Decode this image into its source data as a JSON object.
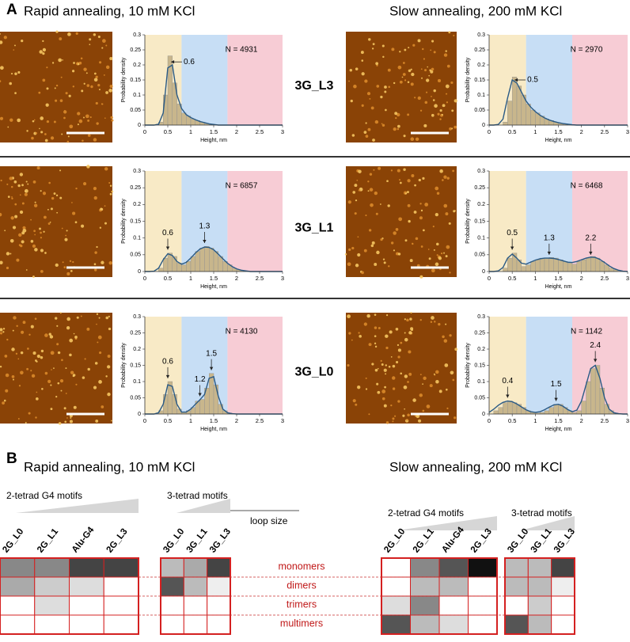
{
  "panel_a": {
    "label": "A",
    "titles": [
      "Rapid annealing, 10 mM KCl",
      "Slow annealing, 200 mM KCl"
    ],
    "rows": [
      "3G_L3",
      "3G_L1",
      "3G_L0"
    ]
  },
  "chart_data": [
    {
      "type": "histogram",
      "n_label": "N = 4931",
      "xlabel": "Height, nm",
      "ylabel": "Probability density",
      "bins": [
        0,
        0.1,
        0.2,
        0.3,
        0.4,
        0.5,
        0.6,
        0.7,
        0.8,
        0.9,
        1,
        1.1,
        1.2,
        1.3,
        1.4,
        1.5,
        1.6,
        1.7,
        1.8,
        1.9,
        2,
        2.1,
        2.2,
        2.3,
        2.4,
        2.5,
        2.6,
        2.7,
        2.8,
        2.9,
        3
      ],
      "values": [
        0,
        0,
        0,
        0.01,
        0.1,
        0.23,
        0.14,
        0.07,
        0.04,
        0.03,
        0.02,
        0.015,
        0.01,
        0.005,
        0.003,
        0,
        0,
        0,
        0,
        0,
        0,
        0,
        0,
        0,
        0,
        0,
        0,
        0,
        0,
        0
      ],
      "fit": [
        0,
        0,
        0,
        0.003,
        0.04,
        0.19,
        0.2,
        0.1,
        0.055,
        0.035,
        0.025,
        0.018,
        0.012,
        0.008,
        0.004,
        0.002,
        0,
        0,
        0,
        0,
        0,
        0,
        0,
        0,
        0,
        0,
        0,
        0,
        0,
        0,
        0
      ],
      "color": "#c8b68c",
      "fit_color": "#2a5a85",
      "regions": [
        {
          "x0": 0,
          "x1": 0.8,
          "color": "#f8eac6"
        },
        {
          "x0": 0.8,
          "x1": 1.8,
          "color": "#c7def5"
        },
        {
          "x0": 1.8,
          "x1": 3,
          "color": "#f7ccd5"
        }
      ],
      "annotations": [
        {
          "label": "0.6",
          "x": 0.57,
          "y": 0.21,
          "arrow": "left"
        }
      ],
      "xlim": [
        0,
        3
      ],
      "xticks": [
        0,
        0.5,
        1,
        1.5,
        2,
        2.5,
        3
      ],
      "ylim": [
        0,
        0.3
      ],
      "yticks": [
        0,
        0.05,
        0.1,
        0.15,
        0.2,
        0.25,
        0.3
      ]
    },
    {
      "type": "histogram",
      "n_label": "N = 2970",
      "xlabel": "Height, nm",
      "ylabel": "Probability density",
      "bins": [
        0,
        0.1,
        0.2,
        0.3,
        0.4,
        0.5,
        0.6,
        0.7,
        0.8,
        0.9,
        1,
        1.1,
        1.2,
        1.3,
        1.4,
        1.5,
        1.6,
        1.7,
        1.8,
        1.9,
        2,
        2.1,
        2.2,
        2.3,
        2.4,
        2.5,
        2.6,
        2.7,
        2.8,
        2.9,
        3
      ],
      "values": [
        0,
        0,
        0,
        0.01,
        0.08,
        0.16,
        0.13,
        0.1,
        0.07,
        0.05,
        0.04,
        0.03,
        0.02,
        0.015,
        0.01,
        0.005,
        0.003,
        0,
        0,
        0,
        0,
        0,
        0,
        0,
        0,
        0,
        0,
        0,
        0,
        0
      ],
      "fit": [
        0,
        0,
        0.002,
        0.02,
        0.09,
        0.15,
        0.14,
        0.11,
        0.08,
        0.06,
        0.045,
        0.033,
        0.024,
        0.017,
        0.012,
        0.008,
        0.005,
        0.003,
        0.001,
        0,
        0,
        0,
        0,
        0,
        0,
        0,
        0,
        0,
        0,
        0,
        0
      ],
      "color": "#c8b68c",
      "fit_color": "#2a5a85",
      "regions": [
        {
          "x0": 0,
          "x1": 0.8,
          "color": "#f8eac6"
        },
        {
          "x0": 0.8,
          "x1": 1.8,
          "color": "#c7def5"
        },
        {
          "x0": 1.8,
          "x1": 3,
          "color": "#f7ccd5"
        }
      ],
      "annotations": [
        {
          "label": "0.5",
          "x": 0.55,
          "y": 0.15,
          "arrow": "left"
        }
      ],
      "xlim": [
        0,
        3
      ],
      "xticks": [
        0,
        0.5,
        1,
        1.5,
        2,
        2.5,
        3
      ],
      "ylim": [
        0,
        0.3
      ],
      "yticks": [
        0,
        0.05,
        0.1,
        0.15,
        0.2,
        0.25,
        0.3
      ]
    },
    {
      "type": "histogram",
      "n_label": "N = 6857",
      "xlabel": "Height, nm",
      "ylabel": "Probability density",
      "bins": [
        0,
        0.1,
        0.2,
        0.3,
        0.4,
        0.5,
        0.6,
        0.7,
        0.8,
        0.9,
        1,
        1.1,
        1.2,
        1.3,
        1.4,
        1.5,
        1.6,
        1.7,
        1.8,
        1.9,
        2,
        2.1,
        2.2,
        2.3,
        2.4,
        2.5,
        2.6,
        2.7,
        2.8,
        2.9,
        3
      ],
      "values": [
        0,
        0,
        0,
        0.01,
        0.04,
        0.055,
        0.045,
        0.025,
        0.02,
        0.03,
        0.045,
        0.06,
        0.07,
        0.075,
        0.07,
        0.06,
        0.045,
        0.03,
        0.02,
        0.01,
        0.005,
        0.003,
        0,
        0,
        0,
        0,
        0,
        0,
        0,
        0
      ],
      "fit": [
        0,
        0,
        0.001,
        0.01,
        0.035,
        0.053,
        0.048,
        0.03,
        0.022,
        0.027,
        0.04,
        0.055,
        0.067,
        0.073,
        0.072,
        0.065,
        0.052,
        0.038,
        0.025,
        0.015,
        0.008,
        0.004,
        0.002,
        0,
        0,
        0,
        0,
        0,
        0,
        0,
        0
      ],
      "color": "#c8b68c",
      "fit_color": "#2a5a85",
      "regions": [
        {
          "x0": 0,
          "x1": 0.8,
          "color": "#f8eac6"
        },
        {
          "x0": 0.8,
          "x1": 1.8,
          "color": "#c7def5"
        },
        {
          "x0": 1.8,
          "x1": 3,
          "color": "#f7ccd5"
        }
      ],
      "annotations": [
        {
          "label": "0.6",
          "x": 0.5,
          "y": 0.065,
          "arrow": "down"
        },
        {
          "label": "1.3",
          "x": 1.3,
          "y": 0.085,
          "arrow": "down"
        }
      ],
      "xlim": [
        0,
        3
      ],
      "xticks": [
        0,
        0.5,
        1,
        1.5,
        2,
        2.5,
        3
      ],
      "ylim": [
        0,
        0.3
      ],
      "yticks": [
        0,
        0.05,
        0.1,
        0.15,
        0.2,
        0.25,
        0.3
      ]
    },
    {
      "type": "histogram",
      "n_label": "N = 6468",
      "xlabel": "Height, nm",
      "ylabel": "Probability density",
      "bins": [
        0,
        0.1,
        0.2,
        0.3,
        0.4,
        0.5,
        0.6,
        0.7,
        0.8,
        0.9,
        1,
        1.1,
        1.2,
        1.3,
        1.4,
        1.5,
        1.6,
        1.7,
        1.8,
        1.9,
        2,
        2.1,
        2.2,
        2.3,
        2.4,
        2.5,
        2.6,
        2.7,
        2.8,
        2.9,
        3
      ],
      "values": [
        0,
        0,
        0,
        0.01,
        0.04,
        0.055,
        0.035,
        0.015,
        0.02,
        0.03,
        0.035,
        0.04,
        0.04,
        0.042,
        0.04,
        0.035,
        0.03,
        0.025,
        0.022,
        0.03,
        0.035,
        0.04,
        0.045,
        0.04,
        0.03,
        0.02,
        0.01,
        0.005,
        0,
        0
      ],
      "fit": [
        0,
        0,
        0.002,
        0.012,
        0.04,
        0.052,
        0.04,
        0.025,
        0.022,
        0.028,
        0.034,
        0.038,
        0.04,
        0.04,
        0.039,
        0.036,
        0.032,
        0.028,
        0.027,
        0.03,
        0.035,
        0.04,
        0.043,
        0.042,
        0.036,
        0.027,
        0.017,
        0.009,
        0.004,
        0.001,
        0
      ],
      "color": "#c8b68c",
      "fit_color": "#2a5a85",
      "regions": [
        {
          "x0": 0,
          "x1": 0.8,
          "color": "#f8eac6"
        },
        {
          "x0": 0.8,
          "x1": 1.8,
          "color": "#c7def5"
        },
        {
          "x0": 1.8,
          "x1": 3,
          "color": "#f7ccd5"
        }
      ],
      "annotations": [
        {
          "label": "0.5",
          "x": 0.5,
          "y": 0.065,
          "arrow": "down"
        },
        {
          "label": "1.3",
          "x": 1.3,
          "y": 0.05,
          "arrow": "down"
        },
        {
          "label": "2.2",
          "x": 2.2,
          "y": 0.05,
          "arrow": "down"
        }
      ],
      "xlim": [
        0,
        3
      ],
      "xticks": [
        0,
        0.5,
        1,
        1.5,
        2,
        2.5,
        3
      ],
      "ylim": [
        0,
        0.3
      ],
      "yticks": [
        0,
        0.05,
        0.1,
        0.15,
        0.2,
        0.25,
        0.3
      ]
    },
    {
      "type": "histogram",
      "n_label": "N = 4130",
      "xlabel": "Height, nm",
      "ylabel": "Probability density",
      "bins": [
        0,
        0.1,
        0.2,
        0.3,
        0.4,
        0.5,
        0.6,
        0.7,
        0.8,
        0.9,
        1,
        1.1,
        1.2,
        1.3,
        1.4,
        1.5,
        1.6,
        1.7,
        1.8,
        1.9,
        2,
        2.1,
        2.2,
        2.3,
        2.4,
        2.5,
        2.6,
        2.7,
        2.8,
        2.9,
        3
      ],
      "values": [
        0,
        0,
        0,
        0.01,
        0.06,
        0.1,
        0.06,
        0.015,
        0.005,
        0.01,
        0.02,
        0.04,
        0.045,
        0.08,
        0.125,
        0.09,
        0.03,
        0.01,
        0.003,
        0,
        0,
        0,
        0,
        0,
        0,
        0,
        0,
        0,
        0,
        0
      ],
      "fit": [
        0,
        0,
        0,
        0.004,
        0.03,
        0.09,
        0.085,
        0.03,
        0.006,
        0.006,
        0.015,
        0.03,
        0.044,
        0.06,
        0.11,
        0.115,
        0.055,
        0.015,
        0.004,
        0.001,
        0,
        0,
        0,
        0,
        0,
        0,
        0,
        0,
        0,
        0,
        0
      ],
      "color": "#c8b68c",
      "fit_color": "#2a5a85",
      "regions": [
        {
          "x0": 0,
          "x1": 0.8,
          "color": "#f8eac6"
        },
        {
          "x0": 0.8,
          "x1": 1.8,
          "color": "#c7def5"
        },
        {
          "x0": 1.8,
          "x1": 3,
          "color": "#f7ccd5"
        }
      ],
      "annotations": [
        {
          "label": "0.6",
          "x": 0.5,
          "y": 0.11,
          "arrow": "down"
        },
        {
          "label": "1.2",
          "x": 1.2,
          "y": 0.055,
          "arrow": "down"
        },
        {
          "label": "1.5",
          "x": 1.45,
          "y": 0.135,
          "arrow": "down"
        }
      ],
      "xlim": [
        0,
        3
      ],
      "xticks": [
        0,
        0.5,
        1,
        1.5,
        2,
        2.5,
        3
      ],
      "ylim": [
        0,
        0.3
      ],
      "yticks": [
        0,
        0.05,
        0.1,
        0.15,
        0.2,
        0.25,
        0.3
      ]
    },
    {
      "type": "histogram",
      "n_label": "N = 1142",
      "xlabel": "Height, nm",
      "ylabel": "Probability density",
      "bins": [
        0,
        0.1,
        0.2,
        0.3,
        0.4,
        0.5,
        0.6,
        0.7,
        0.8,
        0.9,
        1,
        1.1,
        1.2,
        1.3,
        1.4,
        1.5,
        1.6,
        1.7,
        1.8,
        1.9,
        2,
        2.1,
        2.2,
        2.3,
        2.4,
        2.5,
        2.6,
        2.7,
        2.8,
        2.9,
        3
      ],
      "values": [
        0,
        0.01,
        0.02,
        0.035,
        0.04,
        0.035,
        0.03,
        0.02,
        0.01,
        0.005,
        0.003,
        0.005,
        0.01,
        0.02,
        0.03,
        0.03,
        0.02,
        0.01,
        0.005,
        0.01,
        0.04,
        0.1,
        0.14,
        0.15,
        0.08,
        0.03,
        0.01,
        0.003,
        0,
        0
      ],
      "fit": [
        0.005,
        0.015,
        0.027,
        0.036,
        0.04,
        0.038,
        0.031,
        0.022,
        0.013,
        0.007,
        0.005,
        0.007,
        0.013,
        0.021,
        0.028,
        0.03,
        0.024,
        0.014,
        0.007,
        0.012,
        0.04,
        0.09,
        0.14,
        0.15,
        0.11,
        0.05,
        0.015,
        0.004,
        0.001,
        0,
        0
      ],
      "color": "#c8b68c",
      "fit_color": "#2a5a85",
      "regions": [
        {
          "x0": 0,
          "x1": 0.8,
          "color": "#f8eac6"
        },
        {
          "x0": 0.8,
          "x1": 1.8,
          "color": "#c7def5"
        },
        {
          "x0": 1.8,
          "x1": 3,
          "color": "#f7ccd5"
        }
      ],
      "annotations": [
        {
          "label": "0.4",
          "x": 0.4,
          "y": 0.05,
          "arrow": "down"
        },
        {
          "label": "1.5",
          "x": 1.45,
          "y": 0.04,
          "arrow": "down"
        },
        {
          "label": "2.4",
          "x": 2.3,
          "y": 0.16,
          "arrow": "down"
        }
      ],
      "xlim": [
        0,
        3
      ],
      "xticks": [
        0,
        0.5,
        1,
        1.5,
        2,
        2.5,
        3
      ],
      "ylim": [
        0,
        0.3
      ],
      "yticks": [
        0,
        0.05,
        0.1,
        0.15,
        0.2,
        0.25,
        0.3
      ]
    }
  ],
  "panel_b": {
    "label": "B",
    "titles": [
      "Rapid annealing, 10 mM KCl",
      "Slow annealing, 200 mM KCl"
    ],
    "loop_size": "loop  size",
    "row_labels": [
      "monomers",
      "dimers",
      "trimers",
      "multimers"
    ],
    "groups": [
      {
        "header": "2-tetrad G4 motifs",
        "columns": [
          "2G_L0",
          "2G_L1",
          "Alu-G4",
          "2G_L3"
        ],
        "cells": [
          [
            "#888888",
            "#888888",
            "#444444",
            "#444444"
          ],
          [
            "#aaaaaa",
            "#cccccc",
            "#dddddd",
            "#ffffff"
          ],
          [
            "#ffffff",
            "#dddddd",
            "#ffffff",
            "#ffffff"
          ],
          [
            "#ffffff",
            "#ffffff",
            "#ffffff",
            "#ffffff"
          ]
        ]
      },
      {
        "header": "3-tetrad motifs",
        "columns": [
          "3G_L0",
          "3G_L1",
          "3G_L3"
        ],
        "cells": [
          [
            "#bbbbbb",
            "#aaaaaa",
            "#444444"
          ],
          [
            "#555555",
            "#bbbbbb",
            "#eeeeee"
          ],
          [
            "#ffffff",
            "#ffffff",
            "#ffffff"
          ],
          [
            "#ffffff",
            "#ffffff",
            "#ffffff"
          ]
        ]
      },
      {
        "header": "2-tetrad G4 motifs",
        "columns": [
          "2G_L0",
          "2G_L1",
          "Alu-G4",
          "2G_L3"
        ],
        "cells": [
          [
            "#ffffff",
            "#888888",
            "#555555",
            "#111111"
          ],
          [
            "#ffffff",
            "#bbbbbb",
            "#bbbbbb",
            "#ffffff"
          ],
          [
            "#dddddd",
            "#888888",
            "#ffffff",
            "#ffffff"
          ],
          [
            "#555555",
            "#bbbbbb",
            "#dddddd",
            "#ffffff"
          ]
        ]
      },
      {
        "header": "3-tetrad motifs",
        "columns": [
          "3G_L0",
          "3G_L1",
          "3G_L3"
        ],
        "cells": [
          [
            "#bbbbbb",
            "#bbbbbb",
            "#444444"
          ],
          [
            "#bbbbbb",
            "#bbbbbb",
            "#eeeeee"
          ],
          [
            "#ffffff",
            "#cccccc",
            "#ffffff"
          ],
          [
            "#555555",
            "#bbbbbb",
            "#ffffff"
          ]
        ]
      }
    ]
  }
}
